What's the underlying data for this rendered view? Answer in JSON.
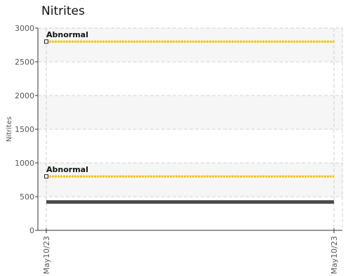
{
  "chart_data": {
    "type": "line",
    "title": "Nitrites",
    "xlabel": "",
    "ylabel": "Nitrites",
    "ylim": [
      0,
      3000
    ],
    "y_ticks": [
      0,
      500,
      1000,
      1500,
      2000,
      2500,
      3000
    ],
    "x_ticks": [
      "May10/23",
      "May10/23"
    ],
    "grid": true,
    "bands": [
      {
        "from": 0,
        "to": 500,
        "shaded": false
      },
      {
        "from": 500,
        "to": 1000,
        "shaded": true
      },
      {
        "from": 1000,
        "to": 1500,
        "shaded": false
      },
      {
        "from": 1500,
        "to": 2000,
        "shaded": true
      },
      {
        "from": 2000,
        "to": 2500,
        "shaded": false
      },
      {
        "from": 2500,
        "to": 3000,
        "shaded": true
      }
    ],
    "thresholds": [
      {
        "label": "Abnormal",
        "value": 2800,
        "color": "#f2c200"
      },
      {
        "label": "Abnormal",
        "value": 800,
        "color": "#f2c200"
      }
    ],
    "series": [
      {
        "values": [
          420,
          420
        ],
        "color": "#4a4a4a"
      }
    ]
  }
}
